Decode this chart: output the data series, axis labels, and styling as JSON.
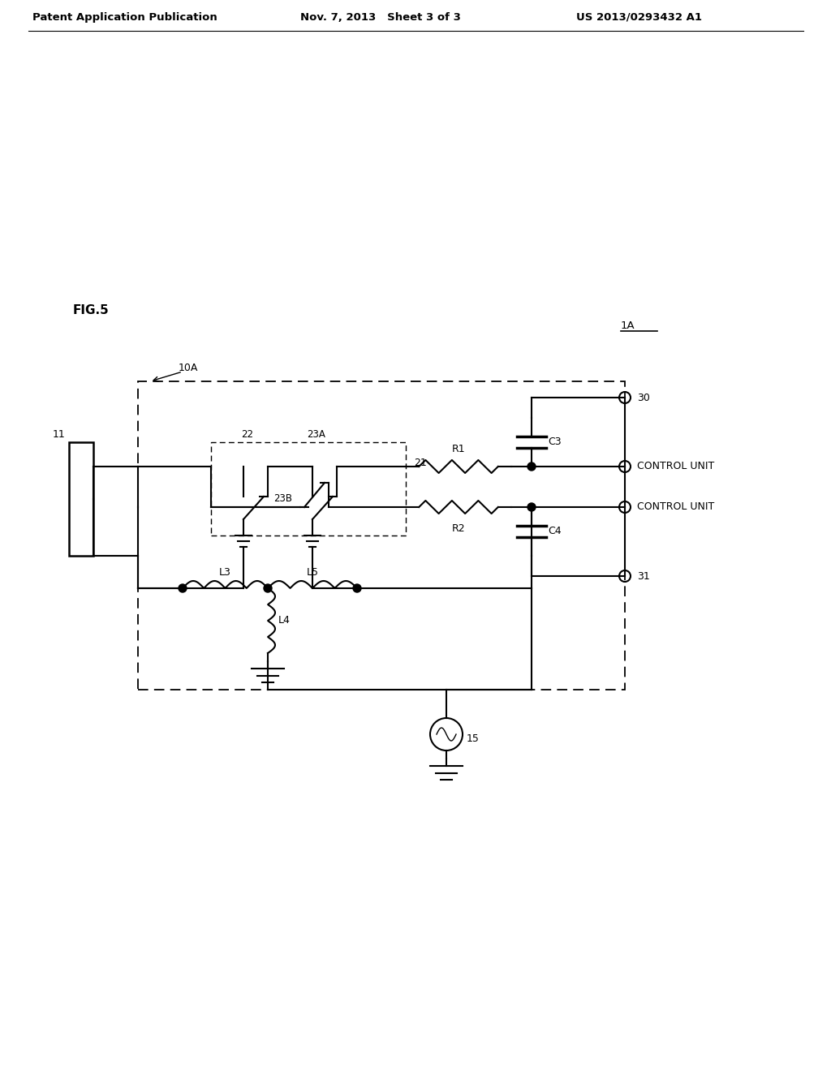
{
  "header_left": "Patent Application Publication",
  "header_center": "Nov. 7, 2013   Sheet 3 of 3",
  "header_right": "US 2013/0293432 A1",
  "fig_label": "FIG.5",
  "label_1A": "1A",
  "label_10A": "10A",
  "label_11": "11",
  "label_15": "15",
  "label_21": "21",
  "label_22": "22",
  "label_23A": "23A",
  "label_23B": "23B",
  "label_30": "30",
  "label_31": "31",
  "label_C3": "C3",
  "label_C4": "C4",
  "label_R1": "R1",
  "label_R2": "R2",
  "label_L3": "L3",
  "label_L4": "L4",
  "label_L5": "L5",
  "label_ctrl": "CONTROL UNIT"
}
